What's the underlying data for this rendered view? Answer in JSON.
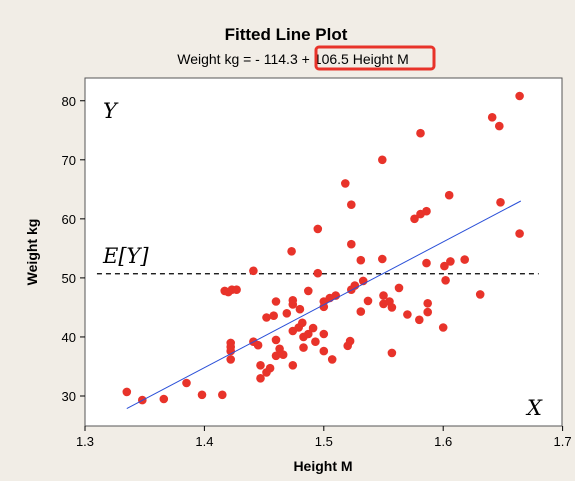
{
  "chart_data": {
    "type": "scatter",
    "title": "Fitted Line Plot",
    "subtitle_prefix": "Weight kg =  - 114.3 +",
    "subtitle_highlight": "106.5 Height M",
    "highlight_color": "#e8332a",
    "xlabel": "Height M",
    "ylabel": "Weight kg",
    "xlim": [
      1.3,
      1.7
    ],
    "ylim": [
      26,
      83
    ],
    "x_ticks": [
      1.3,
      1.4,
      1.5,
      1.6,
      1.7
    ],
    "x_tick_labels": [
      "1.3",
      "1.4",
      "1.5",
      "1.6",
      "1.7"
    ],
    "y_ticks": [
      30,
      40,
      50,
      60,
      70,
      80
    ],
    "y_tick_labels": [
      "30",
      "40",
      "50",
      "60",
      "70",
      "80"
    ],
    "grid": false,
    "point_color": "#e8332a",
    "line_color": "#2b50d8",
    "fit": {
      "intercept": -114.3,
      "slope": 106.5,
      "x_range": [
        1.335,
        1.665
      ]
    },
    "mean_line": {
      "y": 50.7,
      "x_range": [
        1.31,
        1.68
      ],
      "label": "E[Y]",
      "style": "dashed"
    },
    "annotations": {
      "y_corner": "Y",
      "x_corner": "X"
    },
    "points": [
      [
        1.335,
        30.7
      ],
      [
        1.348,
        29.3
      ],
      [
        1.366,
        29.5
      ],
      [
        1.385,
        32.2
      ],
      [
        1.398,
        30.2
      ],
      [
        1.415,
        30.2
      ],
      [
        1.417,
        47.8
      ],
      [
        1.42,
        47.6
      ],
      [
        1.423,
        48.0
      ],
      [
        1.427,
        48.0
      ],
      [
        1.422,
        39.0
      ],
      [
        1.422,
        38.3
      ],
      [
        1.422,
        37.6
      ],
      [
        1.422,
        36.2
      ],
      [
        1.441,
        51.2
      ],
      [
        1.441,
        39.2
      ],
      [
        1.445,
        38.6
      ],
      [
        1.447,
        35.2
      ],
      [
        1.447,
        33.0
      ],
      [
        1.452,
        34.0
      ],
      [
        1.452,
        43.3
      ],
      [
        1.455,
        34.7
      ],
      [
        1.458,
        43.6
      ],
      [
        1.46,
        46.0
      ],
      [
        1.46,
        39.5
      ],
      [
        1.46,
        36.8
      ],
      [
        1.463,
        38.0
      ],
      [
        1.466,
        37.0
      ],
      [
        1.469,
        44.0
      ],
      [
        1.473,
        54.5
      ],
      [
        1.474,
        46.2
      ],
      [
        1.474,
        45.5
      ],
      [
        1.474,
        41.0
      ],
      [
        1.474,
        35.2
      ],
      [
        1.479,
        41.6
      ],
      [
        1.48,
        44.7
      ],
      [
        1.482,
        42.4
      ],
      [
        1.483,
        40.0
      ],
      [
        1.483,
        38.2
      ],
      [
        1.487,
        47.8
      ],
      [
        1.487,
        40.5
      ],
      [
        1.491,
        41.5
      ],
      [
        1.493,
        39.2
      ],
      [
        1.495,
        50.8
      ],
      [
        1.495,
        58.3
      ],
      [
        1.5,
        46.0
      ],
      [
        1.5,
        45.1
      ],
      [
        1.5,
        40.5
      ],
      [
        1.5,
        37.6
      ],
      [
        1.505,
        46.6
      ],
      [
        1.507,
        36.2
      ],
      [
        1.51,
        47.0
      ],
      [
        1.518,
        66.0
      ],
      [
        1.52,
        38.5
      ],
      [
        1.522,
        39.3
      ],
      [
        1.523,
        62.4
      ],
      [
        1.523,
        55.7
      ],
      [
        1.523,
        48.0
      ],
      [
        1.526,
        48.7
      ],
      [
        1.531,
        53.0
      ],
      [
        1.531,
        44.3
      ],
      [
        1.533,
        49.5
      ],
      [
        1.537,
        46.1
      ],
      [
        1.549,
        70.0
      ],
      [
        1.549,
        53.2
      ],
      [
        1.55,
        47.0
      ],
      [
        1.55,
        45.6
      ],
      [
        1.555,
        46.0
      ],
      [
        1.557,
        45.0
      ],
      [
        1.557,
        37.3
      ],
      [
        1.563,
        48.3
      ],
      [
        1.57,
        43.8
      ],
      [
        1.576,
        60.0
      ],
      [
        1.58,
        42.9
      ],
      [
        1.581,
        74.5
      ],
      [
        1.581,
        60.8
      ],
      [
        1.586,
        61.3
      ],
      [
        1.586,
        52.5
      ],
      [
        1.587,
        45.7
      ],
      [
        1.587,
        44.2
      ],
      [
        1.6,
        41.6
      ],
      [
        1.601,
        52.0
      ],
      [
        1.602,
        49.6
      ],
      [
        1.605,
        64.0
      ],
      [
        1.606,
        52.8
      ],
      [
        1.618,
        53.1
      ],
      [
        1.631,
        47.2
      ],
      [
        1.641,
        77.2
      ],
      [
        1.647,
        75.7
      ],
      [
        1.648,
        62.8
      ],
      [
        1.664,
        80.8
      ],
      [
        1.664,
        57.5
      ]
    ]
  }
}
